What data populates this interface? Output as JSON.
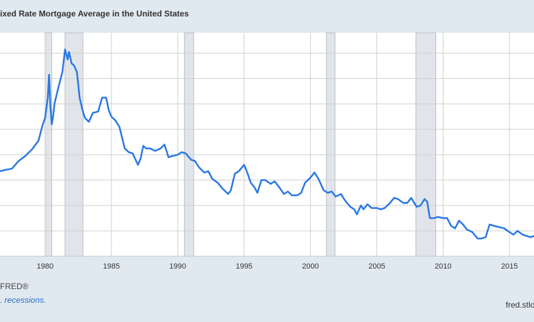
{
  "chart_data": {
    "type": "line",
    "title": "ixed Rate Mortgage Average in the United States",
    "xlabel": "",
    "ylabel": "",
    "xlim": [
      1976.6,
      2016.85
    ],
    "ylim": [
      2,
      19.6
    ],
    "grid": true,
    "x_tick_labels": [
      "1980",
      "1985",
      "1990",
      "1995",
      "2000",
      "2005",
      "2010",
      "2015"
    ],
    "recession_bands": [
      [
        1980.0,
        1980.5
      ],
      [
        1981.5,
        1982.85
      ],
      [
        1990.5,
        1991.2
      ],
      [
        2001.2,
        2001.85
      ],
      [
        2007.95,
        2009.45
      ]
    ],
    "series": [
      {
        "color": "#2a78e4",
        "x": [
          1976.6,
          1977.0,
          1977.5,
          1978.0,
          1978.5,
          1979.0,
          1979.5,
          1979.8,
          1980.0,
          1980.2,
          1980.3,
          1980.4,
          1980.5,
          1980.6,
          1980.7,
          1981.0,
          1981.3,
          1981.5,
          1981.7,
          1981.8,
          1982.0,
          1982.2,
          1982.4,
          1982.6,
          1982.8,
          1983.0,
          1983.3,
          1983.6,
          1984.0,
          1984.3,
          1984.6,
          1984.8,
          1985.0,
          1985.3,
          1985.6,
          1986.0,
          1986.3,
          1986.6,
          1987.0,
          1987.2,
          1987.4,
          1987.6,
          1987.9,
          1988.3,
          1988.7,
          1989.0,
          1989.3,
          1989.6,
          1990.0,
          1990.3,
          1990.6,
          1991.0,
          1991.3,
          1991.6,
          1992.0,
          1992.3,
          1992.6,
          1993.0,
          1993.4,
          1993.8,
          1994.0,
          1994.3,
          1994.6,
          1995.0,
          1995.2,
          1995.5,
          1995.8,
          1996.0,
          1996.3,
          1996.6,
          1997.0,
          1997.3,
          1997.6,
          1998.0,
          1998.3,
          1998.6,
          1999.0,
          1999.3,
          1999.6,
          2000.0,
          2000.3,
          2000.6,
          2001.0,
          2001.3,
          2001.6,
          2001.9,
          2002.3,
          2002.6,
          2003.0,
          2003.3,
          2003.5,
          2003.8,
          2004.0,
          2004.3,
          2004.6,
          2005.0,
          2005.3,
          2005.6,
          2006.0,
          2006.3,
          2006.6,
          2007.0,
          2007.3,
          2007.6,
          2008.0,
          2008.3,
          2008.6,
          2008.8,
          2009.0,
          2009.3,
          2009.6,
          2010.0,
          2010.3,
          2010.6,
          2010.9,
          2011.2,
          2011.5,
          2011.8,
          2012.2,
          2012.6,
          2012.9,
          2013.2,
          2013.5,
          2013.8,
          2014.2,
          2014.6,
          2015.0,
          2015.3,
          2015.6,
          2016.0,
          2016.3,
          2016.6,
          2016.85
        ],
        "y": [
          8.7,
          8.8,
          8.9,
          9.5,
          9.9,
          10.4,
          11.1,
          12.3,
          12.9,
          14.5,
          16.3,
          13.8,
          12.4,
          13.0,
          14.0,
          15.3,
          16.5,
          18.3,
          17.5,
          18.1,
          17.2,
          17.0,
          16.5,
          14.5,
          13.6,
          12.9,
          12.6,
          13.3,
          13.4,
          14.5,
          14.5,
          13.5,
          13.0,
          12.7,
          12.2,
          10.5,
          10.2,
          10.1,
          9.2,
          9.7,
          10.7,
          10.5,
          10.5,
          10.3,
          10.5,
          10.8,
          9.8,
          9.9,
          10.0,
          10.2,
          10.1,
          9.6,
          9.5,
          9.0,
          8.6,
          8.7,
          8.1,
          7.8,
          7.3,
          6.9,
          7.2,
          8.5,
          8.7,
          9.2,
          8.7,
          7.8,
          7.4,
          7.0,
          8.0,
          8.0,
          7.7,
          7.9,
          7.5,
          6.9,
          7.1,
          6.8,
          6.8,
          7.0,
          7.8,
          8.2,
          8.6,
          8.1,
          7.2,
          7.0,
          7.1,
          6.7,
          6.9,
          6.4,
          5.9,
          5.7,
          5.3,
          6.0,
          5.7,
          6.1,
          5.8,
          5.8,
          5.7,
          5.8,
          6.2,
          6.6,
          6.5,
          6.2,
          6.2,
          6.6,
          5.9,
          6.0,
          6.5,
          6.3,
          5.0,
          5.0,
          5.1,
          5.0,
          5.0,
          4.4,
          4.2,
          4.8,
          4.5,
          4.1,
          3.9,
          3.4,
          3.4,
          3.5,
          4.5,
          4.4,
          4.3,
          4.2,
          3.9,
          3.7,
          4.0,
          3.7,
          3.6,
          3.5,
          3.6
        ]
      }
    ]
  },
  "footer": {
    "left_1": "FRED®",
    "left_2": ". recessions.",
    "right": "fred.stlou"
  }
}
